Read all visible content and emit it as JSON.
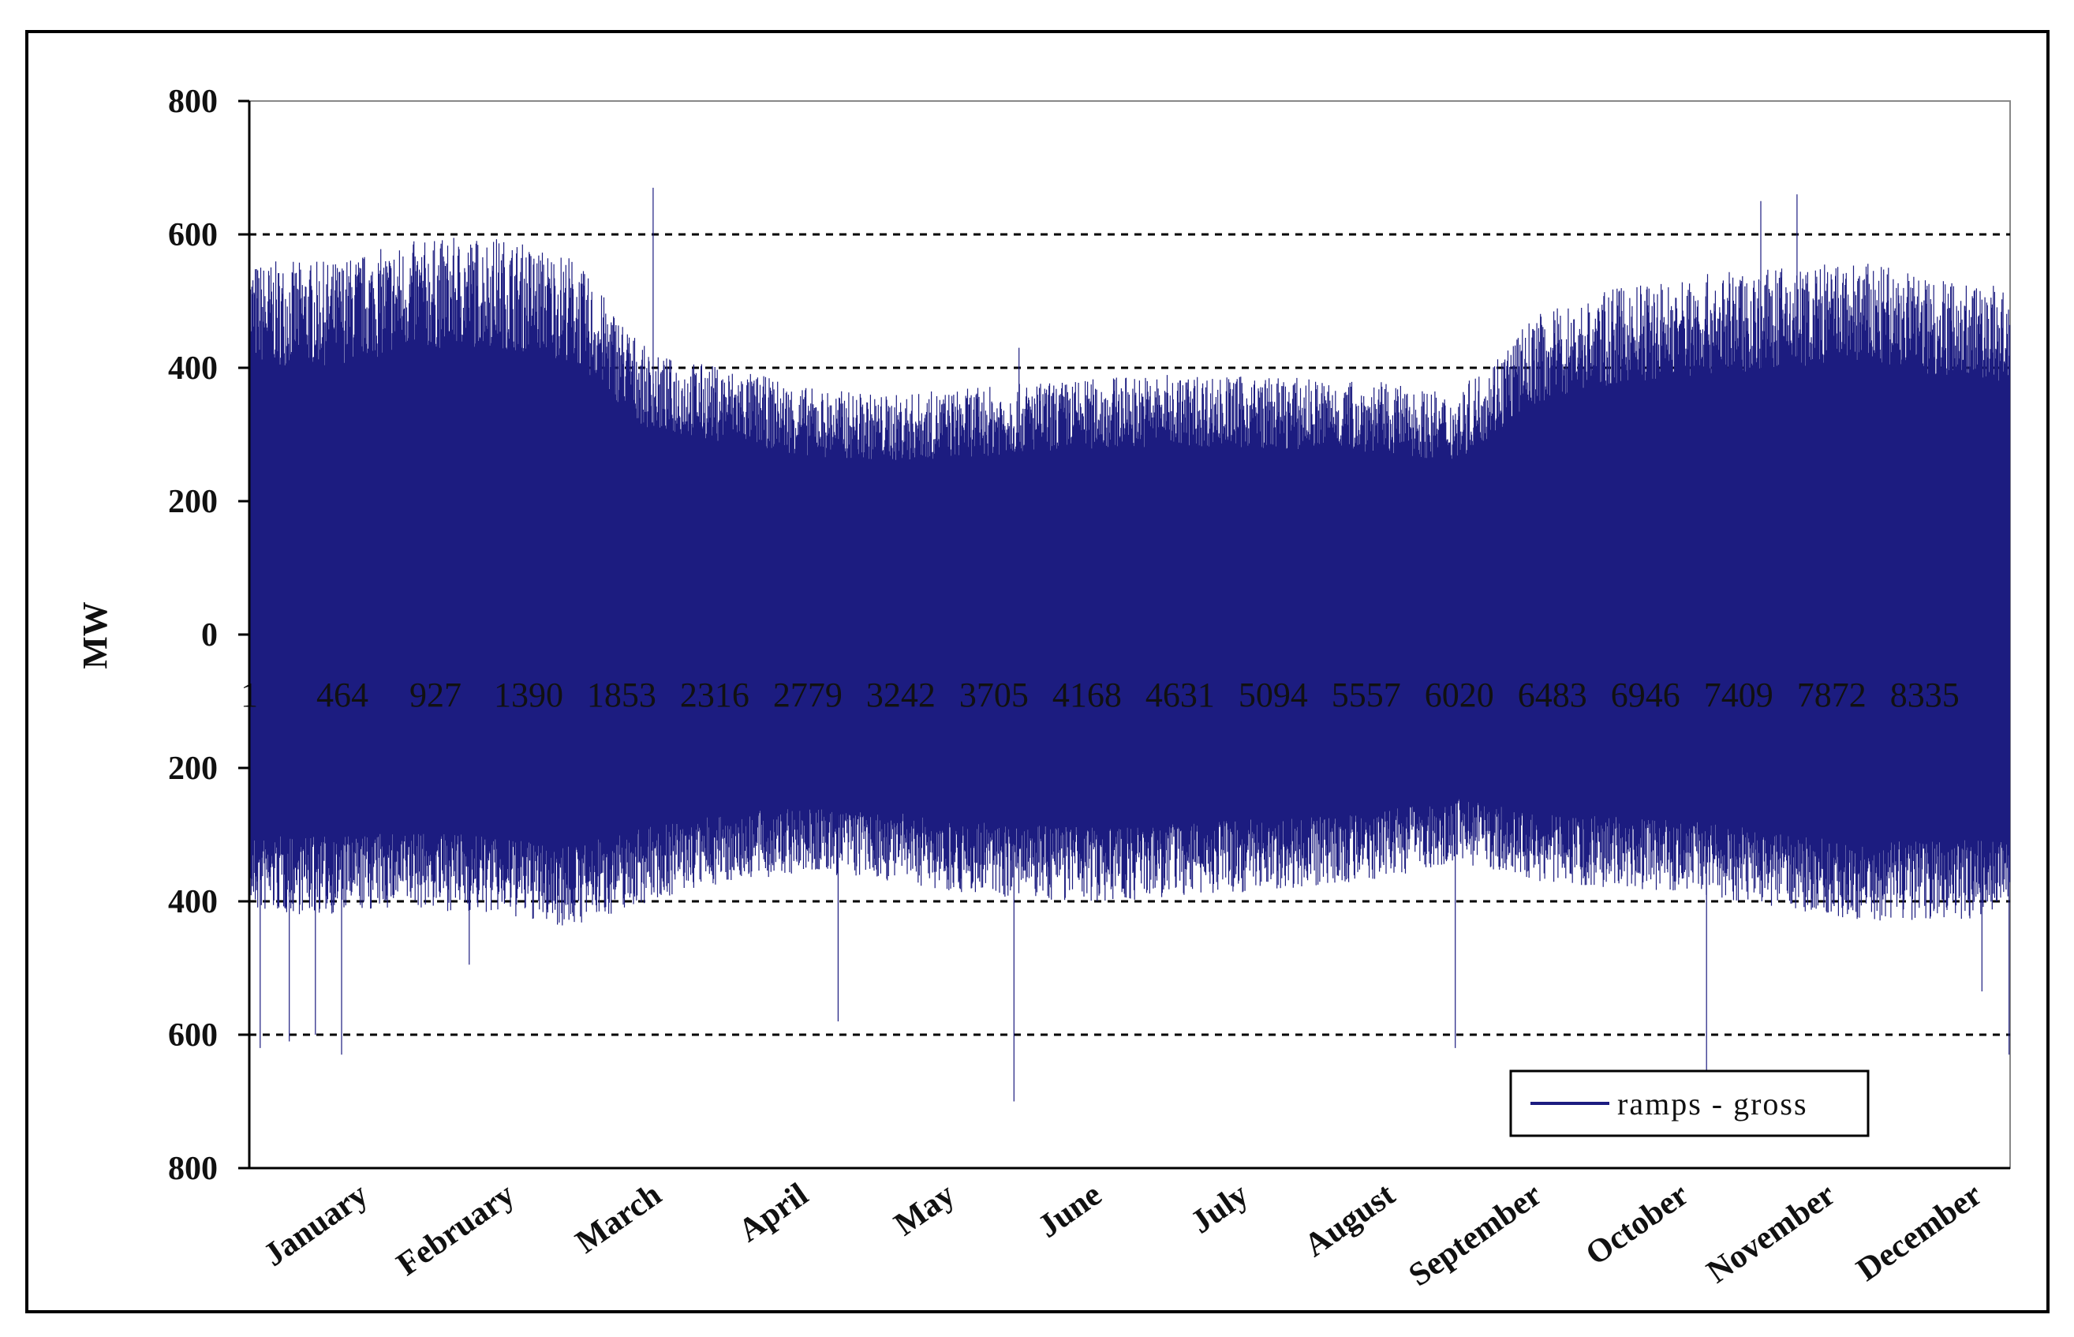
{
  "chart_data": {
    "type": "line",
    "title": "",
    "xlabel": "",
    "ylabel": "MW",
    "ylim": [
      -800,
      800
    ],
    "y_ticks": [
      800,
      600,
      400,
      200,
      0,
      -200,
      -400,
      -600,
      -800
    ],
    "y_tick_labels": [
      "800",
      "600",
      "400",
      "200",
      "0",
      "200",
      "400",
      "600",
      "800"
    ],
    "x_hour_labels": [
      "1",
      "464",
      "927",
      "1390",
      "1853",
      "2316",
      "2779",
      "3242",
      "3705",
      "4168",
      "4631",
      "5094",
      "5557",
      "6020",
      "6483",
      "6946",
      "7409",
      "7872",
      "8335"
    ],
    "months": [
      "January",
      "February",
      "March",
      "April",
      "May",
      "June",
      "July",
      "August",
      "September",
      "October",
      "November",
      "December"
    ],
    "grid": "dashed horizontal at ±400 and ±600",
    "legend": {
      "position": "bottom-right",
      "entries": [
        "ramps - gross"
      ]
    },
    "colors": {
      "series": "#1c1c80",
      "grid": "#000000"
    },
    "series": [
      {
        "name": "ramps - gross",
        "x_hour": [
          1,
          400,
          800,
          1200,
          1600,
          2000,
          2400,
          2800,
          3200,
          3600,
          4000,
          4400,
          4800,
          5200,
          5600,
          6000,
          6400,
          6800,
          7200,
          7600,
          8000,
          8400,
          8760
        ],
        "upper_envelope": [
          560,
          560,
          590,
          600,
          570,
          420,
          400,
          370,
          360,
          370,
          380,
          390,
          390,
          385,
          380,
          360,
          480,
          520,
          540,
          550,
          560,
          540,
          520
        ],
        "lower_envelope": [
          -420,
          -420,
          -410,
          -420,
          -440,
          -400,
          -370,
          -360,
          -370,
          -390,
          -400,
          -400,
          -390,
          -380,
          -370,
          -340,
          -370,
          -380,
          -390,
          -410,
          -430,
          -430,
          -420
        ],
        "notable_spikes": [
          {
            "hour": 55,
            "value": -620
          },
          {
            "hour": 200,
            "value": -610
          },
          {
            "hour": 330,
            "value": -600
          },
          {
            "hour": 460,
            "value": -630
          },
          {
            "hour": 1095,
            "value": -495
          },
          {
            "hour": 2010,
            "value": 670
          },
          {
            "hour": 2930,
            "value": -580
          },
          {
            "hour": 3830,
            "value": 430
          },
          {
            "hour": 3805,
            "value": -700
          },
          {
            "hour": 6000,
            "value": -620
          },
          {
            "hour": 7250,
            "value": -660
          },
          {
            "hour": 7520,
            "value": 650
          },
          {
            "hour": 7700,
            "value": 660
          },
          {
            "hour": 8620,
            "value": -535
          },
          {
            "hour": 8755,
            "value": -630
          }
        ]
      }
    ]
  }
}
